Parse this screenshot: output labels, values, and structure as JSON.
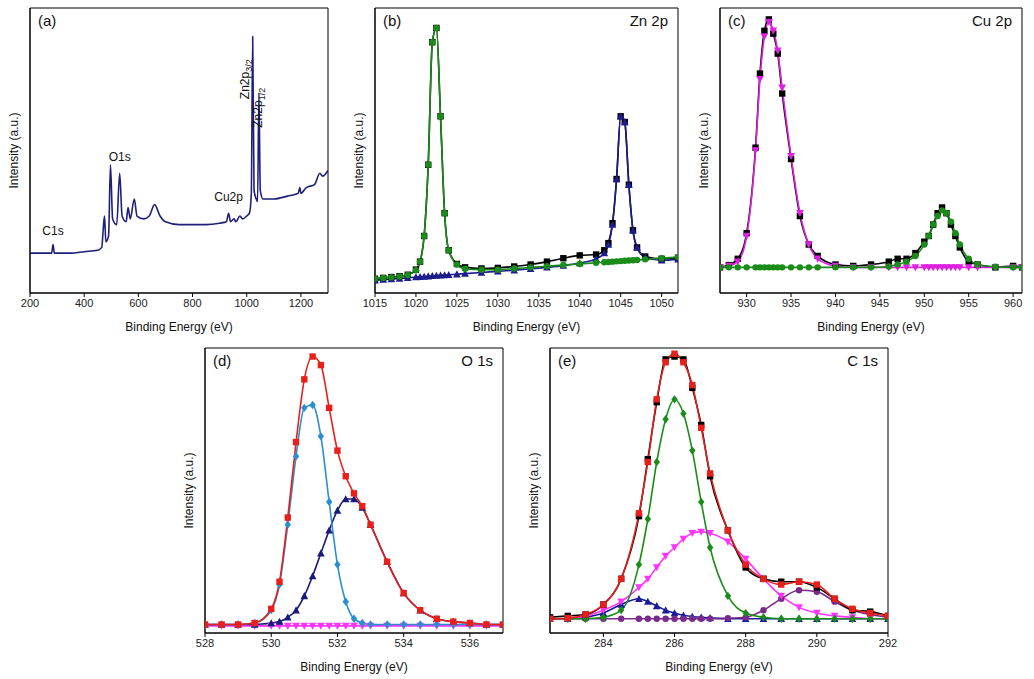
{
  "chart_data": [
    {
      "type": "line",
      "panel": "(a)",
      "x_label": "Binding Energy (eV)",
      "y_label": "Intensity (a.u.)",
      "tick_labels": "x",
      "grid": false,
      "xlim": [
        200,
        1300
      ],
      "xticks": [
        200,
        400,
        600,
        800,
        1000,
        1200
      ],
      "ylim": [
        0,
        100
      ],
      "x": [
        200,
        250,
        280,
        285,
        290,
        350,
        400,
        450,
        465,
        470,
        475,
        480,
        490,
        497,
        505,
        520,
        531,
        540,
        555,
        562,
        570,
        585,
        595,
        620,
        640,
        660,
        680,
        700,
        750,
        800,
        850,
        900,
        925,
        933,
        940,
        953,
        960,
        975,
        985,
        1000,
        1010,
        1017,
        1022,
        1027,
        1035,
        1040,
        1045,
        1050,
        1060,
        1100,
        1150,
        1190,
        1196,
        1200,
        1220,
        1250,
        1270,
        1280,
        1300
      ],
      "series": [
        {
          "color": "#1f1f7a",
          "marker": "none",
          "values": [
            14,
            14,
            14,
            17,
            14,
            14,
            14.5,
            15,
            16,
            22,
            27,
            18,
            20,
            45,
            26,
            24,
            42,
            27,
            25,
            30,
            26,
            33,
            27,
            26,
            27,
            31,
            27,
            25,
            24,
            24,
            24,
            24.5,
            25,
            28,
            25,
            26,
            25,
            27,
            26,
            27,
            28,
            35,
            90,
            36,
            33,
            32,
            70,
            36,
            33,
            33,
            34,
            35,
            37,
            35,
            37,
            38,
            42,
            41,
            43
          ]
        }
      ],
      "annotations": [
        {
          "text": "C1s",
          "x": 285,
          "y": 19
        },
        {
          "text": "O1s",
          "x": 531,
          "y": 45
        },
        {
          "text": "Cu2p",
          "x": 933,
          "y": 31
        },
        {
          "text": "Zn2p3/2",
          "x": 1008,
          "y": 68
        },
        {
          "text": "Zn2p1/2",
          "x": 1056,
          "y": 58
        }
      ]
    },
    {
      "type": "line",
      "panel": "(b)",
      "title": "Zn 2p",
      "x_label": "Binding Energy (eV)",
      "y_label": "Intensity (a.u.)",
      "tick_labels": "x",
      "grid": false,
      "xlim": [
        1015,
        1052
      ],
      "xticks": [
        1015,
        1020,
        1025,
        1030,
        1035,
        1040,
        1045,
        1050
      ],
      "ylim": [
        0,
        100
      ],
      "x": [
        1015,
        1016,
        1017,
        1018,
        1019,
        1020,
        1020.5,
        1021,
        1021.5,
        1022,
        1022.5,
        1023,
        1023.5,
        1024,
        1025,
        1026,
        1028,
        1030,
        1032,
        1034,
        1036,
        1038,
        1040,
        1042,
        1043,
        1043.5,
        1044,
        1044.5,
        1045,
        1045.5,
        1046,
        1046.5,
        1047,
        1048,
        1050,
        1052
      ],
      "series": [
        {
          "color": "#000000",
          "marker": "square",
          "values": [
            5,
            5.3,
            5.6,
            5.9,
            6.4,
            8.2,
            11,
            20,
            45,
            88,
            93,
            62,
            28,
            15,
            10.2,
            9,
            8.6,
            8.8,
            9.3,
            10,
            11,
            12.2,
            13.2,
            13.5,
            15,
            17.5,
            24.5,
            40,
            62,
            60,
            38,
            22,
            16,
            12.8,
            12,
            12.4
          ]
        },
        {
          "color": "#1c1c8c",
          "marker": "triangle",
          "values": [
            4.5,
            4.7,
            4.9,
            5.1,
            5.3,
            5.6,
            5.7,
            5.8,
            5.9,
            6,
            6.1,
            6.2,
            6.3,
            6.4,
            6.6,
            6.8,
            7.2,
            7.6,
            8,
            8.5,
            9,
            9.6,
            10.5,
            12,
            14,
            17,
            24,
            40,
            62,
            60,
            38,
            22,
            16,
            12.5,
            11.5,
            11.8
          ]
        },
        {
          "color": "#1a8c1a",
          "marker": "circle",
          "values": [
            5,
            5.3,
            5.5,
            5.8,
            6.3,
            8,
            11,
            20,
            45,
            88,
            93,
            62,
            28,
            15,
            10,
            8.5,
            8.2,
            8.2,
            8.6,
            9,
            9.4,
            9.8,
            10.2,
            10.6,
            10.8,
            10.9,
            11,
            11.1,
            11.2,
            11.3,
            11.4,
            11.5,
            11.6,
            11.8,
            12.2,
            12.6
          ]
        }
      ]
    },
    {
      "type": "line",
      "panel": "(c)",
      "title": "Cu 2p",
      "x_label": "Binding Energy (eV)",
      "y_label": "Intensity (a.u.)",
      "tick_labels": "x",
      "grid": false,
      "xlim": [
        927,
        961
      ],
      "xticks": [
        930,
        935,
        940,
        945,
        950,
        955,
        960
      ],
      "ylim": [
        0,
        100
      ],
      "x": [
        927,
        928,
        929,
        930,
        931,
        931.5,
        932,
        932.5,
        933,
        933.5,
        934,
        935,
        936,
        937,
        938,
        940,
        942,
        944,
        946,
        947,
        948,
        949,
        950,
        950.5,
        951,
        951.5,
        952,
        952.5,
        953,
        953.5,
        954,
        955,
        956,
        958,
        960,
        961
      ],
      "series": [
        {
          "color": "#000000",
          "marker": "square",
          "values": [
            9,
            9.8,
            12,
            21,
            51,
            77,
            92,
            96,
            91,
            84,
            70,
            47,
            27,
            17,
            13,
            10,
            9.5,
            10,
            11,
            12,
            12,
            14,
            18,
            20,
            24,
            28,
            30,
            28,
            24,
            20,
            16,
            11,
            10,
            9,
            9.5,
            9
          ]
        },
        {
          "color": "#e020e0",
          "marker": "triangle-down",
          "values": [
            9,
            9.5,
            11,
            20,
            50,
            75,
            90,
            95,
            92,
            85,
            72,
            48,
            28,
            17,
            12,
            9.5,
            9,
            9,
            9,
            9,
            9,
            9,
            9,
            9,
            9,
            9,
            9,
            9,
            9,
            9,
            9,
            9,
            9,
            9,
            9,
            9
          ]
        },
        {
          "color": "#1a8c1a",
          "marker": "circle",
          "values": [
            9,
            9,
            9,
            9,
            9,
            9,
            9,
            9,
            9,
            9,
            9,
            9,
            9,
            9,
            9,
            9,
            9,
            9,
            9.3,
            10,
            11,
            13,
            17,
            20,
            24,
            27,
            29,
            28,
            25,
            21,
            17,
            12,
            10,
            9.2,
            9,
            9
          ]
        }
      ]
    },
    {
      "type": "line",
      "panel": "(d)",
      "title": "O 1s",
      "x_label": "Binding Energy (eV)",
      "y_label": "Intensity (a.u.)",
      "tick_labels": "x",
      "grid": false,
      "xlim": [
        528,
        537
      ],
      "xticks": [
        528,
        530,
        532,
        534,
        536
      ],
      "ylim": [
        0,
        100
      ],
      "x": [
        528,
        528.5,
        529,
        529.5,
        530,
        530.25,
        530.5,
        530.75,
        531,
        531.25,
        531.5,
        531.75,
        532,
        532.25,
        532.5,
        532.75,
        533,
        533.5,
        534,
        534.5,
        535,
        535.5,
        536,
        536.5,
        537
      ],
      "series": [
        {
          "color": "#ff33ff",
          "marker": "triangle-down",
          "values": [
            2.5,
            2.5,
            2.5,
            2.5,
            2.5,
            2.5,
            2.5,
            2.5,
            2.5,
            2.5,
            2.5,
            2.5,
            2.5,
            2.5,
            2.5,
            2.5,
            2.5,
            2.5,
            2.5,
            2.5,
            2.5,
            2.5,
            2.5,
            2.5,
            2.5
          ]
        },
        {
          "color": "#1a1a7a",
          "marker": "triangle",
          "values": [
            3,
            3,
            3,
            3,
            3.5,
            4,
            5.5,
            8,
            13,
            20,
            28,
            36,
            43,
            47,
            47,
            44,
            38,
            25,
            14,
            8,
            5,
            4,
            3.5,
            3,
            3
          ]
        },
        {
          "color": "#2a8fd0",
          "marker": "diamond",
          "values": [
            3,
            3,
            3,
            3.5,
            8,
            17,
            38,
            62,
            79,
            80,
            69,
            46,
            24,
            11,
            5,
            3.5,
            3,
            3,
            3,
            3,
            3,
            3,
            3,
            3,
            3
          ]
        },
        {
          "color": "#e8201c",
          "marker": "square",
          "values": [
            3,
            3,
            3,
            3.5,
            8.5,
            18,
            40.5,
            67,
            89,
            97,
            94,
            79,
            64,
            55,
            49,
            44.5,
            38,
            25,
            14,
            8,
            5,
            4,
            3.5,
            3,
            3
          ]
        }
      ]
    },
    {
      "type": "line",
      "panel": "(e)",
      "title": "C 1s",
      "x_label": "Binding Energy (eV)",
      "y_label": "Intensity (a.u.)",
      "tick_labels": "x",
      "grid": false,
      "xlim": [
        282.5,
        292
      ],
      "xticks": [
        284,
        286,
        288,
        290,
        292
      ],
      "ylim": [
        0,
        100
      ],
      "x": [
        282.5,
        283,
        283.5,
        284,
        284.5,
        285,
        285.25,
        285.5,
        285.75,
        286,
        286.25,
        286.5,
        286.75,
        287,
        287.5,
        288,
        288.5,
        289,
        289.5,
        290,
        290.5,
        291,
        291.5,
        292
      ],
      "series": [
        {
          "color": "#1a1a9a",
          "marker": "triangle",
          "values": [
            5,
            5,
            5.5,
            7,
            10,
            12,
            11,
            9.5,
            8,
            7,
            6.2,
            5.8,
            5.5,
            5.3,
            5,
            5,
            5,
            5,
            5,
            5,
            5,
            5,
            5,
            5
          ]
        },
        {
          "color": "#7a2a8a",
          "marker": "circle",
          "values": [
            5,
            5,
            5,
            5,
            5,
            5,
            5,
            5,
            5,
            5,
            5,
            5,
            5,
            5,
            5.2,
            5.5,
            8,
            12,
            15,
            14.5,
            11,
            8,
            6.5,
            5.5
          ]
        },
        {
          "color": "#ff33ff",
          "marker": "triangle-down",
          "values": [
            5,
            5.2,
            6,
            8,
            11,
            16,
            19,
            23,
            27,
            30,
            33,
            35,
            35.5,
            35,
            32,
            26,
            19,
            13,
            9,
            7,
            6,
            5.5,
            5,
            5
          ]
        },
        {
          "color": "#1a8c1a",
          "marker": "diamond",
          "values": [
            5,
            5,
            5,
            5.5,
            8,
            24,
            40,
            60,
            75,
            82,
            77,
            64,
            46,
            30,
            13,
            7,
            5.5,
            5,
            5,
            5,
            5,
            5,
            5,
            5
          ]
        },
        {
          "color": "#000000",
          "marker": "square",
          "values": [
            5.5,
            6,
            6.5,
            10,
            19,
            41,
            61,
            81,
            96,
            97,
            96,
            86,
            73,
            55,
            36,
            23,
            19,
            18,
            18,
            16,
            12,
            8,
            7.5,
            6
          ]
        },
        {
          "color": "#e8201c",
          "marker": "square",
          "values": [
            5,
            5.2,
            6.5,
            10,
            19,
            42,
            60,
            82,
            95,
            98,
            95,
            87,
            72,
            56,
            36,
            24,
            19,
            17,
            18,
            17,
            12,
            8.5,
            7,
            6
          ]
        }
      ]
    }
  ]
}
